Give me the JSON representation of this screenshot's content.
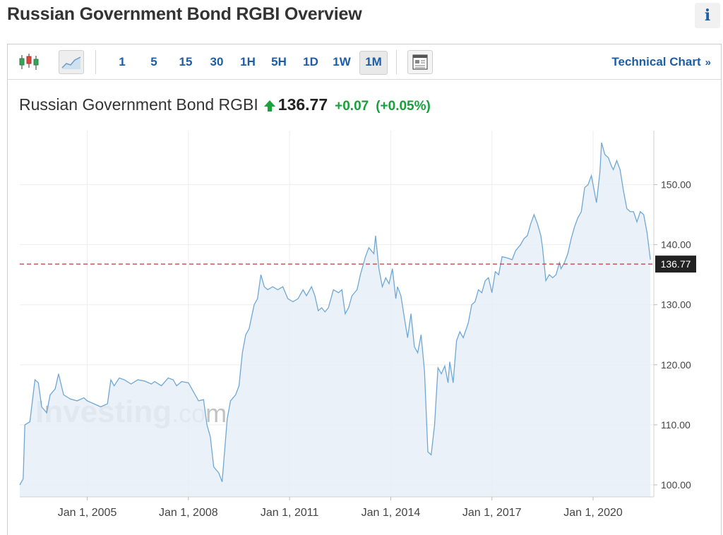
{
  "page": {
    "title": "Russian Government Bond RGBI Overview",
    "info_label": "i"
  },
  "toolbar": {
    "timeframes": [
      "1",
      "5",
      "15",
      "30",
      "1H",
      "5H",
      "1D",
      "1W",
      "1M"
    ],
    "active_timeframe": "1M",
    "technical_chart_label": "Technical Chart",
    "icons": [
      "candlestick-icon",
      "area-chart-icon",
      "news-layout-icon"
    ]
  },
  "quote": {
    "name": "Russian Government Bond RGBI",
    "price": "136.77",
    "change": "+0.07",
    "change_pct": "(+0.05%)",
    "direction": "up",
    "color_up": "#17a13c"
  },
  "watermark": {
    "brand": "Investing",
    "suffix": ".com"
  },
  "chart_data": {
    "type": "area",
    "title": "",
    "xlabel": "",
    "ylabel": "",
    "x_ticks": [
      "Jan 1, 2005",
      "Jan 1, 2008",
      "Jan 1, 2011",
      "Jan 1, 2014",
      "Jan 1, 2017",
      "Jan 1, 2020"
    ],
    "x_tick_years": [
      2005,
      2008,
      2011,
      2014,
      2017,
      2020
    ],
    "xlim": [
      2003.0,
      2021.8
    ],
    "y_ticks": [
      "100.00",
      "110.00",
      "120.00",
      "130.00",
      "140.00",
      "150.00"
    ],
    "y_tick_values": [
      100,
      110,
      120,
      130,
      140,
      150
    ],
    "ylim": [
      98,
      159
    ],
    "last_value": 136.77,
    "last_label": "136.77",
    "line_color": "#6fa8d6",
    "fill_color": "#e6eff7",
    "ref_line_color": "#c0393b",
    "grid": true,
    "series": [
      {
        "points": [
          [
            2003.0,
            100
          ],
          [
            2003.1,
            101
          ],
          [
            2003.15,
            110
          ],
          [
            2003.3,
            110.5
          ],
          [
            2003.45,
            117.5
          ],
          [
            2003.55,
            117
          ],
          [
            2003.65,
            113
          ],
          [
            2003.8,
            112
          ],
          [
            2003.9,
            115
          ],
          [
            2004.05,
            116
          ],
          [
            2004.15,
            118.5
          ],
          [
            2004.3,
            115
          ],
          [
            2004.5,
            114.3
          ],
          [
            2004.7,
            114
          ],
          [
            2004.9,
            114.5
          ],
          [
            2005.0,
            114
          ],
          [
            2005.2,
            113.5
          ],
          [
            2005.4,
            113
          ],
          [
            2005.6,
            113.5
          ],
          [
            2005.7,
            117.5
          ],
          [
            2005.8,
            116.5
          ],
          [
            2005.95,
            117.8
          ],
          [
            2006.1,
            117.5
          ],
          [
            2006.3,
            116.8
          ],
          [
            2006.5,
            117.5
          ],
          [
            2006.7,
            117.3
          ],
          [
            2006.9,
            116.8
          ],
          [
            2007.0,
            117.2
          ],
          [
            2007.2,
            116.5
          ],
          [
            2007.4,
            117.8
          ],
          [
            2007.55,
            117.5
          ],
          [
            2007.65,
            116.5
          ],
          [
            2007.8,
            117.2
          ],
          [
            2008.0,
            117
          ],
          [
            2008.15,
            115.5
          ],
          [
            2008.3,
            114
          ],
          [
            2008.45,
            114.2
          ],
          [
            2008.55,
            110
          ],
          [
            2008.65,
            108
          ],
          [
            2008.75,
            103
          ],
          [
            2008.9,
            102
          ],
          [
            2009.0,
            100.5
          ],
          [
            2009.05,
            104
          ],
          [
            2009.15,
            111
          ],
          [
            2009.25,
            114
          ],
          [
            2009.4,
            115
          ],
          [
            2009.5,
            116.5
          ],
          [
            2009.6,
            122
          ],
          [
            2009.7,
            125
          ],
          [
            2009.8,
            126
          ],
          [
            2009.95,
            130
          ],
          [
            2010.05,
            131
          ],
          [
            2010.15,
            135
          ],
          [
            2010.25,
            133
          ],
          [
            2010.35,
            132.5
          ],
          [
            2010.5,
            133
          ],
          [
            2010.65,
            132.5
          ],
          [
            2010.8,
            133
          ],
          [
            2010.95,
            131
          ],
          [
            2011.1,
            130.5
          ],
          [
            2011.25,
            131
          ],
          [
            2011.4,
            132.5
          ],
          [
            2011.5,
            131.5
          ],
          [
            2011.65,
            133
          ],
          [
            2011.75,
            131.5
          ],
          [
            2011.85,
            129
          ],
          [
            2011.95,
            129.5
          ],
          [
            2012.05,
            128.8
          ],
          [
            2012.15,
            129.5
          ],
          [
            2012.3,
            132.5
          ],
          [
            2012.45,
            132
          ],
          [
            2012.55,
            132.5
          ],
          [
            2012.65,
            128.5
          ],
          [
            2012.75,
            129.5
          ],
          [
            2012.85,
            131.5
          ],
          [
            2013.0,
            132.5
          ],
          [
            2013.1,
            135
          ],
          [
            2013.25,
            138
          ],
          [
            2013.35,
            139.5
          ],
          [
            2013.5,
            138.5
          ],
          [
            2013.55,
            141.5
          ],
          [
            2013.65,
            136
          ],
          [
            2013.75,
            133
          ],
          [
            2013.85,
            134.5
          ],
          [
            2013.95,
            133.5
          ],
          [
            2014.05,
            136
          ],
          [
            2014.15,
            131
          ],
          [
            2014.2,
            133
          ],
          [
            2014.3,
            131.5
          ],
          [
            2014.4,
            128
          ],
          [
            2014.5,
            124.5
          ],
          [
            2014.6,
            128.5
          ],
          [
            2014.7,
            123
          ],
          [
            2014.8,
            122
          ],
          [
            2014.9,
            125
          ],
          [
            2015.0,
            119
          ],
          [
            2015.1,
            105.5
          ],
          [
            2015.2,
            105
          ],
          [
            2015.3,
            110
          ],
          [
            2015.4,
            119.5
          ],
          [
            2015.5,
            118.5
          ],
          [
            2015.6,
            119.8
          ],
          [
            2015.7,
            117
          ],
          [
            2015.75,
            120.5
          ],
          [
            2015.85,
            117
          ],
          [
            2015.95,
            124
          ],
          [
            2016.05,
            125.5
          ],
          [
            2016.15,
            124.5
          ],
          [
            2016.3,
            127
          ],
          [
            2016.4,
            130
          ],
          [
            2016.5,
            130.5
          ],
          [
            2016.6,
            132.5
          ],
          [
            2016.7,
            132
          ],
          [
            2016.8,
            134
          ],
          [
            2016.9,
            134.5
          ],
          [
            2017.0,
            132
          ],
          [
            2017.1,
            135.5
          ],
          [
            2017.2,
            135
          ],
          [
            2017.3,
            138
          ],
          [
            2017.45,
            137.8
          ],
          [
            2017.6,
            137.5
          ],
          [
            2017.7,
            139
          ],
          [
            2017.85,
            140
          ],
          [
            2017.95,
            141
          ],
          [
            2018.05,
            141.5
          ],
          [
            2018.15,
            143.5
          ],
          [
            2018.25,
            145
          ],
          [
            2018.35,
            143.5
          ],
          [
            2018.45,
            141.5
          ],
          [
            2018.5,
            139.5
          ],
          [
            2018.6,
            134
          ],
          [
            2018.7,
            135
          ],
          [
            2018.8,
            134.5
          ],
          [
            2018.9,
            135
          ],
          [
            2019.0,
            137
          ],
          [
            2019.05,
            136
          ],
          [
            2019.15,
            137
          ],
          [
            2019.25,
            138.5
          ],
          [
            2019.35,
            141
          ],
          [
            2019.45,
            143
          ],
          [
            2019.55,
            144.5
          ],
          [
            2019.65,
            145.5
          ],
          [
            2019.75,
            149.5
          ],
          [
            2019.85,
            150
          ],
          [
            2019.95,
            151.5
          ],
          [
            2020.0,
            150
          ],
          [
            2020.1,
            147
          ],
          [
            2020.2,
            152
          ],
          [
            2020.25,
            157
          ],
          [
            2020.35,
            155
          ],
          [
            2020.45,
            154.5
          ],
          [
            2020.55,
            153
          ],
          [
            2020.6,
            152.5
          ],
          [
            2020.7,
            154
          ],
          [
            2020.8,
            152.5
          ],
          [
            2020.9,
            149
          ],
          [
            2021.0,
            146
          ],
          [
            2021.1,
            145.5
          ],
          [
            2021.2,
            145.5
          ],
          [
            2021.3,
            143.8
          ],
          [
            2021.4,
            145.5
          ],
          [
            2021.5,
            145
          ],
          [
            2021.6,
            142
          ],
          [
            2021.7,
            137.5
          ]
        ]
      }
    ]
  }
}
